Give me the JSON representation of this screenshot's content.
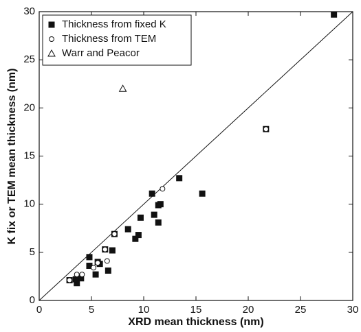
{
  "chart_data": {
    "type": "scatter",
    "xlabel": "XRD mean thickness (nm)",
    "ylabel": "K fix or TEM mean thickness (nm)",
    "xlim": [
      0,
      30
    ],
    "ylim": [
      0,
      30
    ],
    "xticks": [
      0,
      5,
      10,
      15,
      20,
      25,
      30
    ],
    "yticks": [
      0,
      5,
      10,
      15,
      20,
      25,
      30
    ],
    "legend": "upper left",
    "series": [
      {
        "name": "Thickness from fixed K",
        "marker": "filled-square",
        "color": "#111111",
        "x": [
          28.2,
          21.7,
          13.4,
          15.6,
          10.8,
          11.6,
          11.4,
          11.0,
          11.4,
          9.7,
          8.5,
          9.5,
          9.2,
          7.2,
          6.3,
          7.0,
          4.8,
          5.6,
          5.8,
          4.8,
          6.6,
          5.4,
          4.0,
          3.6,
          3.5,
          2.9
        ],
        "values": [
          29.7,
          17.8,
          12.7,
          11.1,
          11.1,
          10.0,
          9.9,
          8.9,
          8.1,
          8.6,
          7.4,
          6.8,
          6.4,
          6.9,
          5.3,
          5.2,
          4.5,
          4.0,
          3.8,
          3.6,
          3.1,
          2.7,
          2.3,
          1.8,
          2.2,
          2.1
        ]
      },
      {
        "name": "Thickness from TEM",
        "marker": "open-circle",
        "color": "#111111",
        "x": [
          21.7,
          11.8,
          7.2,
          6.3,
          6.5,
          5.6,
          5.2,
          4.1,
          3.6,
          2.9
        ],
        "values": [
          17.8,
          11.6,
          6.9,
          5.3,
          4.1,
          3.9,
          3.4,
          2.7,
          2.7,
          2.1
        ]
      },
      {
        "name": "Warr and Peacor",
        "marker": "open-triangle",
        "color": "#111111",
        "x": [
          8.0
        ],
        "values": [
          22.0
        ]
      }
    ]
  }
}
